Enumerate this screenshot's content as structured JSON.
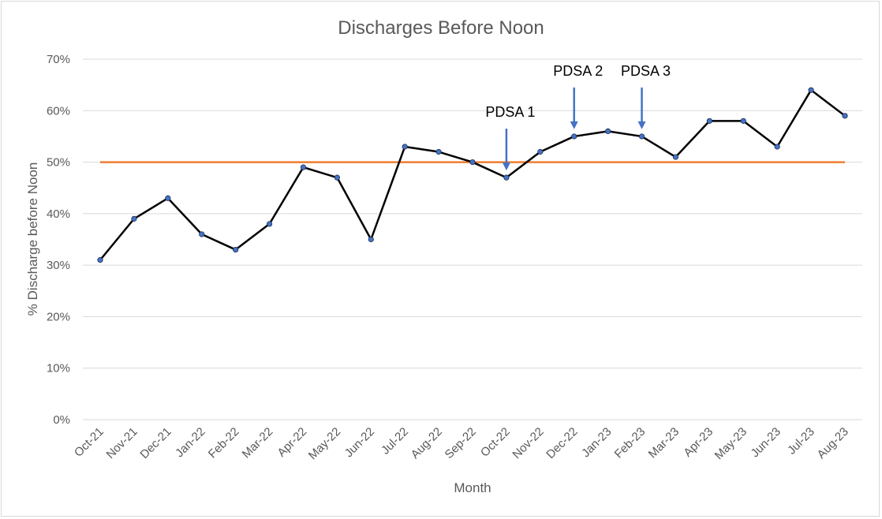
{
  "chart_data": {
    "type": "line",
    "title": "Discharges Before Noon",
    "xlabel": "Month",
    "ylabel": "% Discharge before Noon",
    "ylim": [
      0,
      70
    ],
    "y_ticks": [
      "0%",
      "10%",
      "20%",
      "30%",
      "40%",
      "50%",
      "60%",
      "70%"
    ],
    "grid": true,
    "categories": [
      "Oct-21",
      "Nov-21",
      "Dec-21",
      "Jan-22",
      "Feb-22",
      "Mar-22",
      "Apr-22",
      "May-22",
      "Jun-22",
      "Jul-22",
      "Aug-22",
      "Sep-22",
      "Oct-22",
      "Nov-22",
      "Dec-22",
      "Jan-23",
      "Feb-23",
      "Mar-23",
      "Apr-23",
      "May-23",
      "Jun-23",
      "Jul-23",
      "Aug-23"
    ],
    "series": [
      {
        "values": [
          31,
          39,
          43,
          36,
          33,
          38,
          49,
          47,
          35,
          53,
          52,
          50,
          47,
          52,
          55,
          56,
          55,
          51,
          58,
          58,
          53,
          64,
          59
        ],
        "color": "#000000",
        "marker_color": "#4472c4"
      },
      {
        "values": [
          50,
          50,
          50,
          50,
          50,
          50,
          50,
          50,
          50,
          50,
          50,
          50,
          50,
          50,
          50,
          50,
          50,
          50,
          50,
          50,
          50,
          50,
          50
        ],
        "color": "#ed7d31"
      }
    ],
    "annotations": [
      {
        "text": "PDSA 1",
        "category": "Oct-22",
        "arrow_color": "#4472c4"
      },
      {
        "text": "PDSA 2",
        "category": "Dec-22",
        "arrow_color": "#4472c4"
      },
      {
        "text": "PDSA 3",
        "category": "Feb-23",
        "arrow_color": "#4472c4"
      }
    ],
    "colors": {
      "grid": "#d9d9d9",
      "text": "#595959"
    }
  }
}
